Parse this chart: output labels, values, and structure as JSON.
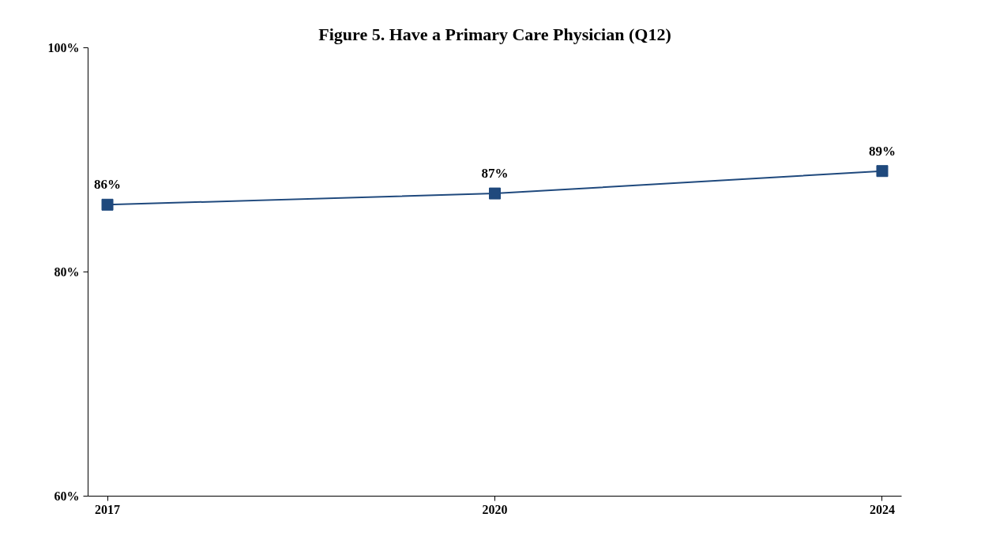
{
  "chart_data": {
    "type": "line",
    "title": "Figure 5. Have a Primary Care Physician (Q12)",
    "categories": [
      "2017",
      "2020",
      "2024"
    ],
    "series": [
      {
        "color": "#1f497d",
        "values": [
          86,
          87,
          89
        ],
        "value_labels": [
          "86%",
          "87%",
          "89%"
        ]
      }
    ],
    "ylim": [
      60,
      100
    ],
    "yticks": [
      {
        "value": 60,
        "label": "60%"
      },
      {
        "value": 80,
        "label": "80%"
      },
      {
        "value": 100,
        "label": "100%"
      }
    ],
    "marker": "square",
    "line_style": "solid",
    "grid": false
  }
}
